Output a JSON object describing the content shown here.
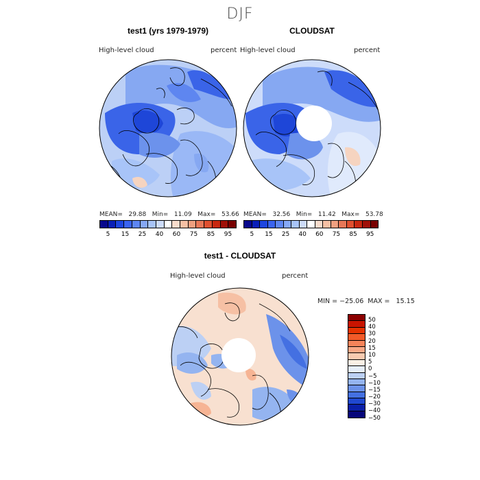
{
  "season": "DJF",
  "panels": {
    "left": {
      "title": "test1 (yrs 1979-1979)",
      "var_label": "High-level cloud",
      "units": "percent",
      "stats": "MEAN=   29.88   Min=   11.09   Max=   53.66",
      "has_hole": false
    },
    "right": {
      "title": "CLOUDSAT",
      "var_label": "High-level cloud",
      "units": "percent",
      "stats": "MEAN=   32.56   Min=   11.42   Max=   53.78",
      "has_hole": true
    },
    "diff": {
      "title": "test1 - CLOUDSAT",
      "var_label": "High-level cloud",
      "units": "percent",
      "minmax": "MIN = −25.06  MAX =   15.15"
    }
  },
  "colorbar_top": {
    "labels": [
      "5",
      "15",
      "25",
      "40",
      "60",
      "75",
      "85",
      "95"
    ],
    "colors": [
      "#08088c",
      "#0a20b8",
      "#1e46e0",
      "#3a64f0",
      "#5e86f2",
      "#86a8f6",
      "#a8c4f8",
      "#cddcfa",
      "#ffffff",
      "#f8dccc",
      "#f6c0a4",
      "#f0a080",
      "#e87858",
      "#e05030",
      "#c82810",
      "#a01008",
      "#780000"
    ]
  },
  "colorbar_diff": {
    "labels": [
      "50",
      "40",
      "30",
      "20",
      "15",
      "10",
      "5",
      "0",
      "−5",
      "−10",
      "−15",
      "−20",
      "−30",
      "−40",
      "−50"
    ],
    "colors": [
      "#8c0000",
      "#c81400",
      "#e63200",
      "#f25a28",
      "#f6845a",
      "#f8a886",
      "#f8cab0",
      "#faf0e6",
      "#e6eefa",
      "#bcd0f4",
      "#94b4f0",
      "#6c92ea",
      "#4470e2",
      "#2048d0",
      "#0a20a8",
      "#06067a"
    ]
  }
}
